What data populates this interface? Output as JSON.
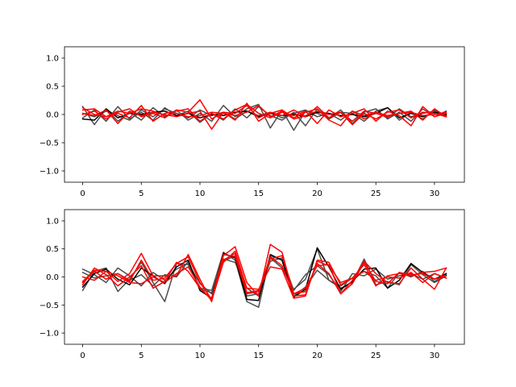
{
  "chart_data": [
    {
      "type": "line",
      "grid": false,
      "xlim": [
        -1.55,
        32.55
      ],
      "ylim": [
        -1.2,
        1.2
      ],
      "xticks": [
        0,
        5,
        10,
        15,
        20,
        25,
        30
      ],
      "yticks": [
        -1.0,
        -0.5,
        0.0,
        0.5,
        1.0
      ],
      "xtick_labels": [
        "0",
        "5",
        "10",
        "15",
        "20",
        "25",
        "30"
      ],
      "ytick_labels": [
        "−1.0",
        "−0.5",
        "0.0",
        "0.5",
        "1.0"
      ],
      "x": [
        0,
        1,
        2,
        3,
        4,
        5,
        6,
        7,
        8,
        9,
        10,
        11,
        12,
        13,
        14,
        15,
        16,
        17,
        18,
        19,
        20,
        21,
        22,
        23,
        24,
        25,
        26,
        27,
        28,
        29,
        30,
        31
      ],
      "series": [
        {
          "color": "#4d4d4d",
          "values": [
            0.14,
            -0.18,
            0.1,
            -0.12,
            0.04,
            -0.1,
            0.12,
            -0.04,
            0.08,
            -0.1,
            0.02,
            -0.12,
            0.16,
            -0.04,
            0.1,
            0.18,
            -0.24,
            0.08,
            -0.28,
            0.06,
            0.02,
            -0.06,
            0.08,
            -0.16,
            0.04,
            0.1,
            -0.08,
            0.04,
            -0.12,
            0.1,
            -0.04,
            0.06
          ]
        },
        {
          "color": "#4d4d4d",
          "values": [
            -0.06,
            0.08,
            -0.12,
            0.14,
            -0.08,
            0.04,
            -0.1,
            0.12,
            -0.02,
            0.06,
            -0.14,
            0.02,
            -0.1,
            0.1,
            -0.06,
            0.14,
            -0.02,
            -0.1,
            0.04,
            -0.2,
            0.1,
            -0.08,
            0.04,
            0.02,
            -0.12,
            0.06,
            0.12,
            -0.1,
            0.04,
            -0.08,
            0.08,
            -0.02
          ]
        },
        {
          "color": "#4d4d4d",
          "values": [
            0.02,
            -0.04,
            0.06,
            -0.02,
            -0.1,
            0.08,
            -0.04,
            0.1,
            0.02,
            -0.06,
            0.08,
            -0.02,
            0.04,
            -0.08,
            0.06,
            -0.02,
            0.04,
            -0.06,
            0.02,
            0.08,
            -0.04,
            0.02,
            -0.1,
            0.06,
            -0.02,
            0.04,
            -0.06,
            0.1,
            -0.04,
            0.02,
            0.06,
            -0.02
          ]
        },
        {
          "color": "#000000",
          "values": [
            -0.08,
            -0.1,
            0.1,
            -0.06,
            0.02,
            0.0,
            0.04,
            0.06,
            -0.02,
            0.02,
            -0.06,
            0.0,
            -0.02,
            0.04,
            0.06,
            -0.04,
            0.02,
            -0.02,
            0.0,
            -0.04,
            0.04,
            0.02,
            -0.02,
            0.0,
            -0.04,
            0.02,
            0.12,
            -0.06,
            0.02,
            -0.04,
            0.04,
            0.0
          ]
        },
        {
          "color": "#ff0000",
          "values": [
            0.08,
            0.1,
            -0.04,
            0.02,
            -0.06,
            0.16,
            -0.12,
            0.02,
            0.06,
            0.1,
            -0.12,
            0.02,
            -0.08,
            0.08,
            0.18,
            0.02,
            -0.06,
            0.04,
            -0.02,
            0.06,
            -0.16,
            0.08,
            -0.04,
            0.02,
            0.1,
            -0.12,
            0.06,
            -0.02,
            -0.2,
            0.14,
            -0.04,
            0.02
          ]
        },
        {
          "color": "#ff0000",
          "values": [
            0.0,
            0.06,
            -0.08,
            0.04,
            0.1,
            -0.04,
            0.02,
            -0.06,
            0.08,
            0.04,
            0.26,
            -0.08,
            0.04,
            -0.1,
            0.2,
            -0.12,
            0.02,
            0.08,
            -0.06,
            0.04,
            0.1,
            -0.1,
            -0.2,
            0.06,
            -0.08,
            0.04,
            -0.02,
            0.02,
            0.06,
            -0.1,
            0.1,
            -0.04
          ]
        },
        {
          "color": "#ff0000",
          "values": [
            0.02,
            -0.02,
            0.08,
            -0.16,
            0.06,
            -0.02,
            0.04,
            0.0,
            -0.04,
            0.02,
            0.06,
            -0.26,
            0.04,
            0.02,
            0.16,
            -0.06,
            0.04,
            -0.02,
            0.08,
            -0.04,
            0.14,
            -0.06,
            0.04,
            -0.18,
            0.02,
            -0.08,
            0.04,
            0.08,
            -0.06,
            0.04,
            0.02,
            -0.04
          ]
        },
        {
          "color": "#ff0000",
          "values": [
            0.12,
            0.0,
            -0.04,
            0.06,
            0.02,
            0.1,
            0.06,
            -0.02,
            0.02,
            -0.04,
            -0.02,
            0.04,
            0.02,
            -0.02,
            0.04,
            0.16,
            -0.04,
            0.06,
            -0.08,
            -0.02,
            0.06,
            0.0,
            0.04,
            -0.12,
            0.06,
            0.02,
            -0.04,
            0.02,
            0.04,
            -0.02,
            0.0,
            0.04
          ]
        }
      ]
    },
    {
      "type": "line",
      "grid": false,
      "xlim": [
        -1.55,
        32.55
      ],
      "ylim": [
        -1.2,
        1.2
      ],
      "xticks": [
        0,
        5,
        10,
        15,
        20,
        25,
        30
      ],
      "yticks": [
        -1.0,
        -0.5,
        0.0,
        0.5,
        1.0
      ],
      "xtick_labels": [
        "0",
        "5",
        "10",
        "15",
        "20",
        "25",
        "30"
      ],
      "ytick_labels": [
        "−1.0",
        "−0.5",
        "0.0",
        "0.5",
        "1.0"
      ],
      "x": [
        0,
        1,
        2,
        3,
        4,
        5,
        6,
        7,
        8,
        9,
        10,
        11,
        12,
        13,
        14,
        15,
        16,
        17,
        18,
        19,
        20,
        21,
        22,
        23,
        24,
        25,
        26,
        27,
        28,
        29,
        30,
        31
      ],
      "series": [
        {
          "color": "#4d4d4d",
          "values": [
            -0.24,
            0.1,
            0.16,
            -0.26,
            -0.04,
            0.26,
            -0.1,
            -0.44,
            0.24,
            0.22,
            -0.2,
            -0.24,
            0.44,
            0.3,
            -0.44,
            -0.54,
            0.38,
            0.3,
            -0.34,
            -0.18,
            0.12,
            -0.06,
            -0.2,
            -0.1,
            0.32,
            -0.14,
            -0.08,
            -0.14,
            0.22,
            0.04,
            -0.1,
            0.02
          ]
        },
        {
          "color": "#4d4d4d",
          "values": [
            0.14,
            0.04,
            -0.1,
            0.16,
            0.02,
            -0.16,
            0.08,
            -0.06,
            0.14,
            0.24,
            -0.12,
            -0.3,
            0.28,
            0.38,
            -0.34,
            -0.3,
            0.28,
            0.34,
            -0.24,
            0.04,
            0.2,
            0.04,
            -0.26,
            0.06,
            0.02,
            0.14,
            -0.04,
            0.02,
            0.06,
            -0.04,
            0.06,
            -0.02
          ]
        },
        {
          "color": "#4d4d4d",
          "values": [
            0.08,
            -0.02,
            0.02,
            0.06,
            -0.06,
            0.04,
            -0.16,
            0.04,
            0.0,
            0.28,
            -0.22,
            -0.28,
            0.32,
            0.26,
            -0.2,
            -0.34,
            0.34,
            0.16,
            -0.22,
            -0.04,
            0.5,
            -0.06,
            -0.16,
            -0.02,
            0.1,
            0.02,
            -0.2,
            0.08,
            0.0,
            0.1,
            -0.08,
            0.04
          ]
        },
        {
          "color": "#000000",
          "values": [
            -0.18,
            0.06,
            0.14,
            -0.04,
            -0.14,
            0.16,
            0.02,
            -0.12,
            0.18,
            0.3,
            -0.24,
            -0.38,
            0.42,
            0.34,
            -0.4,
            -0.42,
            0.4,
            0.3,
            -0.36,
            -0.22,
            0.52,
            0.18,
            -0.22,
            -0.08,
            0.14,
            0.16,
            -0.2,
            -0.06,
            0.24,
            0.08,
            -0.04,
            0.06
          ]
        },
        {
          "color": "#ff0000",
          "values": [
            -0.08,
            0.12,
            0.1,
            -0.08,
            0.06,
            0.42,
            0.02,
            0.02,
            0.02,
            0.4,
            -0.04,
            -0.44,
            0.38,
            0.54,
            -0.1,
            -0.34,
            0.58,
            0.44,
            -0.34,
            -0.32,
            0.28,
            0.2,
            -0.1,
            -0.02,
            0.1,
            -0.06,
            0.0,
            -0.02,
            0.08,
            -0.1,
            0.06,
            -0.02
          ]
        },
        {
          "color": "#ff0000",
          "values": [
            -0.14,
            0.16,
            0.04,
            -0.16,
            0.0,
            0.2,
            -0.2,
            -0.08,
            0.26,
            0.1,
            -0.2,
            -0.4,
            0.4,
            0.36,
            -0.3,
            -0.26,
            0.36,
            0.2,
            -0.3,
            -0.26,
            0.24,
            0.06,
            -0.3,
            -0.06,
            0.28,
            0.06,
            -0.1,
            -0.12,
            0.16,
            -0.04,
            -0.22,
            0.16
          ]
        },
        {
          "color": "#ff0000",
          "values": [
            0.0,
            -0.06,
            0.1,
            0.02,
            -0.1,
            -0.12,
            0.0,
            -0.1,
            0.06,
            0.18,
            -0.18,
            -0.42,
            0.26,
            0.46,
            -0.2,
            -0.22,
            0.18,
            0.14,
            -0.38,
            -0.34,
            0.3,
            0.26,
            -0.14,
            -0.02,
            0.22,
            -0.16,
            0.02,
            0.06,
            0.02,
            0.08,
            0.1,
            0.16
          ]
        },
        {
          "color": "#ff0000",
          "values": [
            -0.1,
            0.1,
            -0.04,
            0.06,
            -0.08,
            0.3,
            -0.06,
            -0.02,
            0.24,
            0.36,
            -0.1,
            -0.4,
            0.3,
            0.42,
            -0.28,
            -0.24,
            0.32,
            0.38,
            -0.3,
            -0.2,
            0.2,
            0.22,
            -0.3,
            -0.12,
            0.26,
            -0.08,
            -0.12,
            0.08,
            0.04,
            0.06,
            -0.04,
            0.02
          ]
        }
      ]
    }
  ]
}
